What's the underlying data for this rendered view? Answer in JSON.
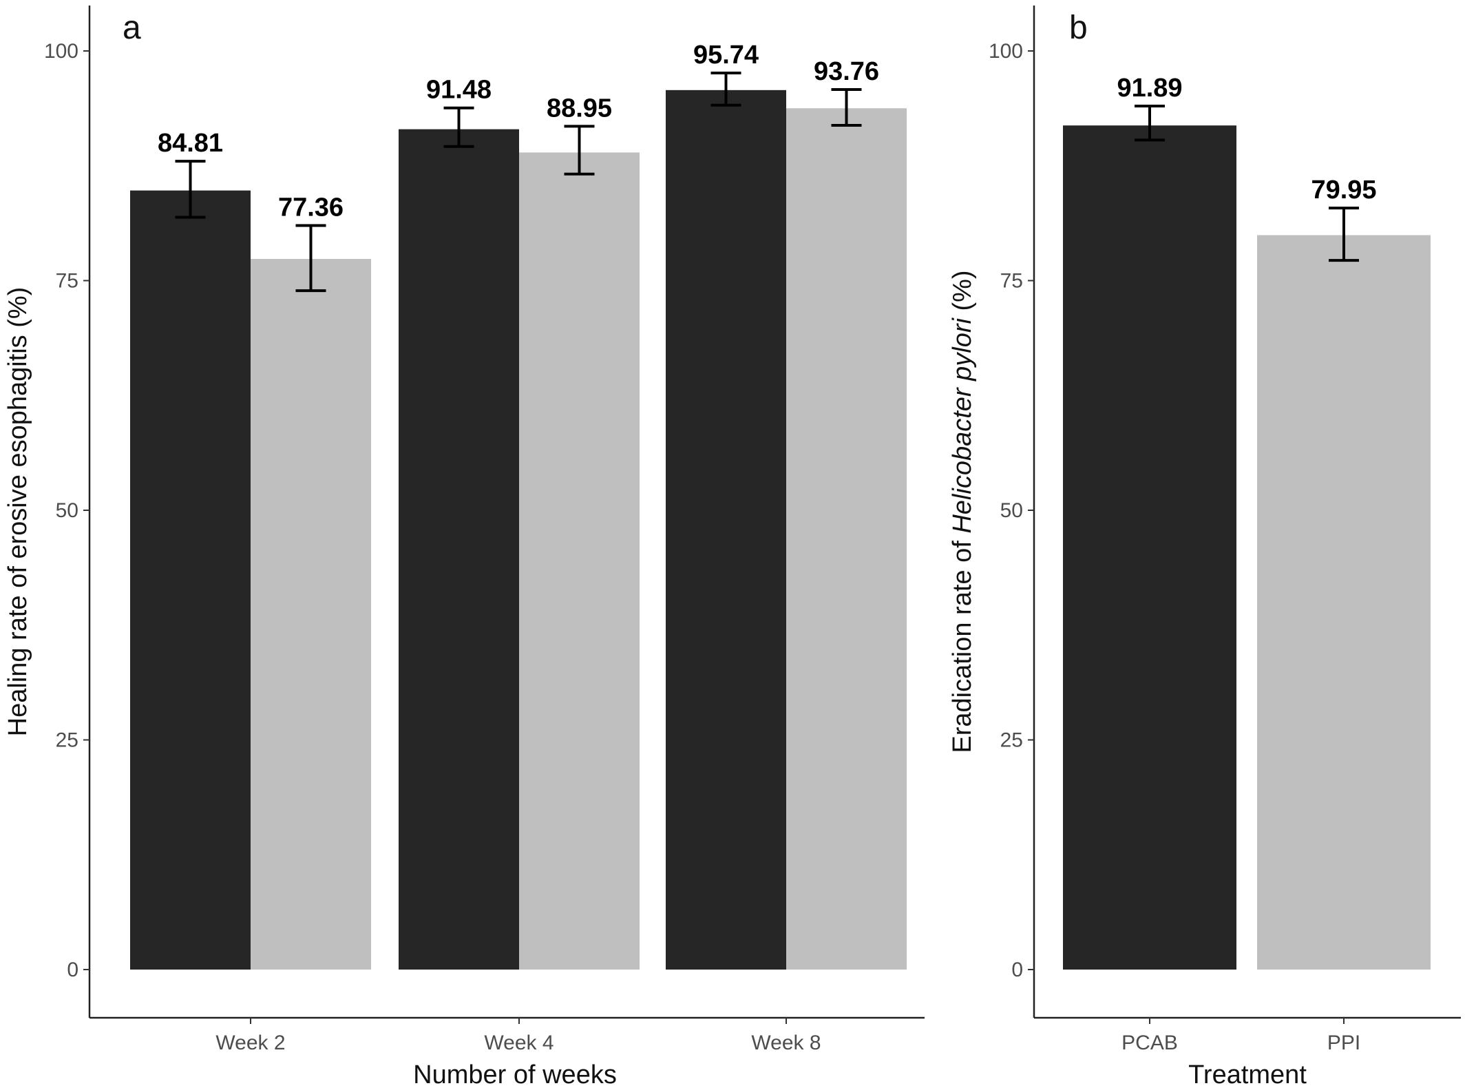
{
  "chart_data": [
    {
      "panel_label": "a",
      "type": "bar",
      "categories": [
        "Week 2",
        "Week 4",
        "Week 8"
      ],
      "series": [
        {
          "values": [
            84.81,
            91.48,
            95.74
          ],
          "error_low": [
            81.9,
            89.6,
            94.1
          ],
          "error_high": [
            88.0,
            93.8,
            97.6
          ],
          "color": "#262626"
        },
        {
          "values": [
            77.36,
            88.95,
            93.76
          ],
          "error_low": [
            73.9,
            86.6,
            91.9
          ],
          "error_high": [
            81.0,
            91.8,
            95.8
          ],
          "color": "#bfbfbf"
        }
      ],
      "data_labels": [
        [
          "84.81",
          "91.48",
          "95.74"
        ],
        [
          "77.36",
          "88.95",
          "93.76"
        ]
      ],
      "xlabel": "Number of weeks",
      "ylabel": "Healing rate of erosive esophagitis (%)",
      "ylim": [
        -5,
        105
      ],
      "yticks": [
        0,
        25,
        50,
        75,
        100
      ],
      "ytick_labels": [
        "0",
        "25",
        "50",
        "75",
        "100"
      ],
      "grid": false,
      "legend": "none"
    },
    {
      "panel_label": "b",
      "type": "bar",
      "categories": [
        "PCAB",
        "PPI"
      ],
      "values": [
        91.89,
        79.95
      ],
      "error_low": [
        90.3,
        77.2
      ],
      "error_high": [
        94.0,
        82.9
      ],
      "colors": [
        "#262626",
        "#bfbfbf"
      ],
      "data_labels": [
        "91.89",
        "79.95"
      ],
      "xlabel": "Treatment",
      "ylabel_parts": [
        "Eradication rate of ",
        "Helicobacter pylori",
        " (%)"
      ],
      "ylim": [
        -5,
        105
      ],
      "yticks": [
        0,
        25,
        50,
        75,
        100
      ],
      "ytick_labels": [
        "0",
        "25",
        "50",
        "75",
        "100"
      ],
      "grid": false,
      "legend": "none"
    }
  ]
}
